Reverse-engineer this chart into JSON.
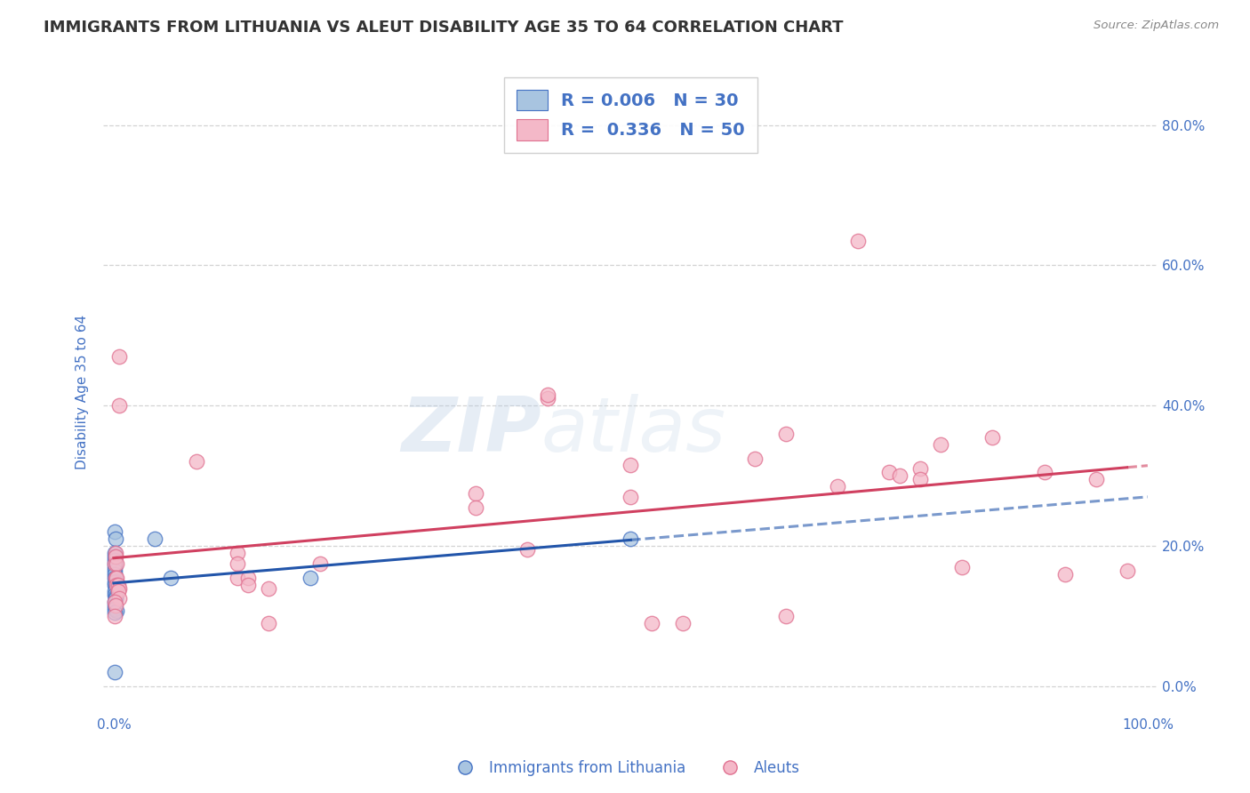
{
  "title": "IMMIGRANTS FROM LITHUANIA VS ALEUT DISABILITY AGE 35 TO 64 CORRELATION CHART",
  "source": "Source: ZipAtlas.com",
  "xlabel_label": "Immigrants from Lithuania",
  "ylabel_label": "Disability Age 35 to 64",
  "xlim": [
    -0.01,
    1.01
  ],
  "ylim": [
    -0.04,
    0.88
  ],
  "y_ticks": [
    0.0,
    0.2,
    0.4,
    0.6,
    0.8
  ],
  "y_tick_labels": [
    "0.0%",
    "20.0%",
    "40.0%",
    "60.0%",
    "80.0%"
  ],
  "x_tick_labels_left": "0.0%",
  "x_tick_labels_right": "100.0%",
  "blue_scatter": [
    [
      0.001,
      0.22
    ],
    [
      0.002,
      0.21
    ],
    [
      0.001,
      0.19
    ],
    [
      0.001,
      0.185
    ],
    [
      0.001,
      0.18
    ],
    [
      0.001,
      0.175
    ],
    [
      0.001,
      0.17
    ],
    [
      0.001,
      0.165
    ],
    [
      0.001,
      0.16
    ],
    [
      0.001,
      0.155
    ],
    [
      0.002,
      0.155
    ],
    [
      0.002,
      0.15
    ],
    [
      0.001,
      0.148
    ],
    [
      0.001,
      0.145
    ],
    [
      0.002,
      0.142
    ],
    [
      0.003,
      0.14
    ],
    [
      0.001,
      0.135
    ],
    [
      0.001,
      0.13
    ],
    [
      0.002,
      0.128
    ],
    [
      0.002,
      0.125
    ],
    [
      0.001,
      0.12
    ],
    [
      0.001,
      0.115
    ],
    [
      0.001,
      0.11
    ],
    [
      0.003,
      0.108
    ],
    [
      0.001,
      0.105
    ],
    [
      0.001,
      0.02
    ],
    [
      0.04,
      0.21
    ],
    [
      0.055,
      0.155
    ],
    [
      0.19,
      0.155
    ],
    [
      0.5,
      0.21
    ]
  ],
  "pink_scatter": [
    [
      0.005,
      0.47
    ],
    [
      0.005,
      0.4
    ],
    [
      0.001,
      0.175
    ],
    [
      0.002,
      0.19
    ],
    [
      0.002,
      0.185
    ],
    [
      0.003,
      0.175
    ],
    [
      0.002,
      0.155
    ],
    [
      0.003,
      0.155
    ],
    [
      0.003,
      0.145
    ],
    [
      0.004,
      0.145
    ],
    [
      0.005,
      0.14
    ],
    [
      0.004,
      0.135
    ],
    [
      0.005,
      0.125
    ],
    [
      0.001,
      0.12
    ],
    [
      0.002,
      0.115
    ],
    [
      0.001,
      0.1
    ],
    [
      0.08,
      0.32
    ],
    [
      0.12,
      0.19
    ],
    [
      0.12,
      0.175
    ],
    [
      0.12,
      0.155
    ],
    [
      0.13,
      0.155
    ],
    [
      0.13,
      0.145
    ],
    [
      0.15,
      0.14
    ],
    [
      0.15,
      0.09
    ],
    [
      0.2,
      0.175
    ],
    [
      0.35,
      0.275
    ],
    [
      0.35,
      0.255
    ],
    [
      0.4,
      0.195
    ],
    [
      0.42,
      0.41
    ],
    [
      0.42,
      0.415
    ],
    [
      0.5,
      0.27
    ],
    [
      0.5,
      0.315
    ],
    [
      0.52,
      0.09
    ],
    [
      0.55,
      0.09
    ],
    [
      0.62,
      0.325
    ],
    [
      0.65,
      0.36
    ],
    [
      0.65,
      0.1
    ],
    [
      0.7,
      0.285
    ],
    [
      0.72,
      0.635
    ],
    [
      0.75,
      0.305
    ],
    [
      0.76,
      0.3
    ],
    [
      0.78,
      0.31
    ],
    [
      0.78,
      0.295
    ],
    [
      0.8,
      0.345
    ],
    [
      0.82,
      0.17
    ],
    [
      0.85,
      0.355
    ],
    [
      0.9,
      0.305
    ],
    [
      0.92,
      0.16
    ],
    [
      0.95,
      0.295
    ],
    [
      0.98,
      0.165
    ]
  ],
  "blue_color": "#a8c4e0",
  "blue_edge_color": "#4472c4",
  "blue_line_color": "#2255aa",
  "pink_color": "#f4b8c8",
  "pink_edge_color": "#e07090",
  "pink_line_color": "#d04060",
  "blue_R": 0.006,
  "blue_N": 30,
  "pink_R": 0.336,
  "pink_N": 50,
  "watermark_zip": "ZIP",
  "watermark_atlas": "atlas",
  "background_color": "#ffffff",
  "grid_color": "#c8c8c8",
  "title_fontsize": 13,
  "axis_label_fontsize": 11,
  "tick_fontsize": 11,
  "tick_color": "#4472c4",
  "label_color": "#4472c4",
  "title_color": "#333333",
  "source_color": "#888888",
  "legend_text_color": "#4472c4"
}
